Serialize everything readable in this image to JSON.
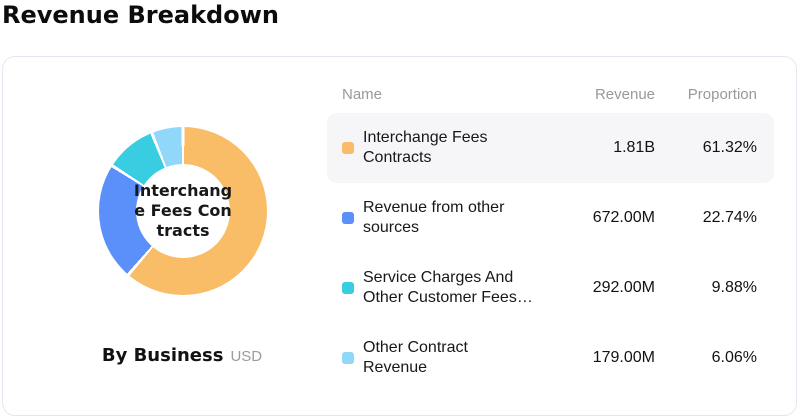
{
  "page": {
    "title": "Revenue Breakdown"
  },
  "card": {
    "chart": {
      "center_label": "Interchang\ne Fees Con\ntracts",
      "footer": {
        "label": "By Business",
        "currency": "USD"
      }
    },
    "table": {
      "headers": {
        "name": "Name",
        "revenue": "Revenue",
        "proportion": "Proportion"
      },
      "rows": [
        {
          "name": "Interchange Fees\nContracts",
          "revenue": "1.81B",
          "proportion": "61.32%"
        },
        {
          "name": "Revenue from other\nsources",
          "revenue": "672.00M",
          "proportion": "22.74%"
        },
        {
          "name": "Service Charges And\nOther Customer Fees…",
          "revenue": "292.00M",
          "proportion": "9.88%"
        },
        {
          "name": "Other Contract\nRevenue",
          "revenue": "179.00M",
          "proportion": "6.06%"
        }
      ]
    }
  },
  "chart_data": {
    "type": "pie",
    "donut": true,
    "title": "Revenue Breakdown",
    "subtitle": "By Business",
    "currency": "USD",
    "center_label": "Interchange Fees Contracts",
    "start_angle_deg": 0,
    "segment_gap_deg": 1.1,
    "legend_position": "right-table",
    "series": [
      {
        "name": "Interchange Fees Contracts",
        "value": 1810000000,
        "display_value": "1.81B",
        "proportion_pct": 61.32,
        "color": "#F9BD67"
      },
      {
        "name": "Revenue from other sources",
        "value": 672000000,
        "display_value": "672.00M",
        "proportion_pct": 22.74,
        "color": "#5B8FF9"
      },
      {
        "name": "Service Charges And Other Customer Fees…",
        "value": 292000000,
        "display_value": "292.00M",
        "proportion_pct": 9.88,
        "color": "#38CDE0"
      },
      {
        "name": "Other Contract Revenue",
        "value": 179000000,
        "display_value": "179.00M",
        "proportion_pct": 6.06,
        "color": "#90D7FA"
      }
    ]
  }
}
